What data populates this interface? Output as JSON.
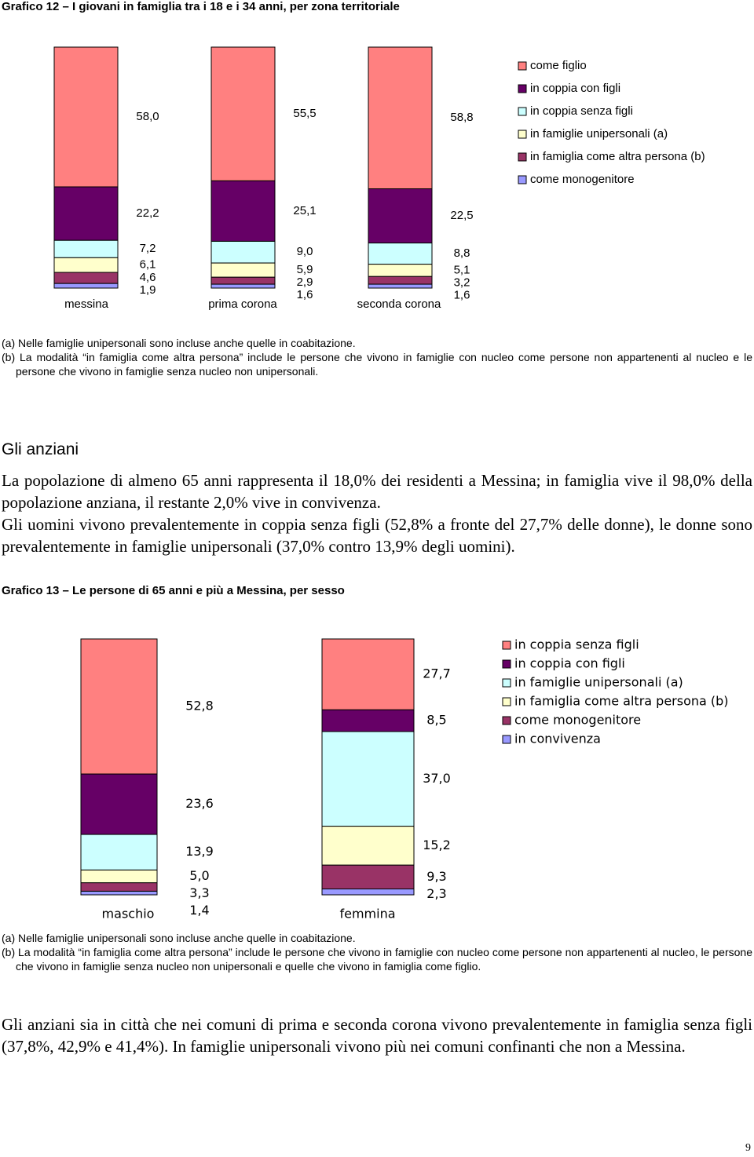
{
  "chart_data": [
    {
      "type": "stacked-bar",
      "title": "Grafico 12 – I giovani in famiglia tra i 18 e i 34 anni, per zona territoriale",
      "categories": [
        "messina",
        "prima corona",
        "seconda corona"
      ],
      "ylim": [
        0,
        100
      ],
      "series": [
        {
          "name": "come figlio",
          "color": "#ff8080",
          "values": [
            58.0,
            55.5,
            58.8
          ],
          "value_labels": [
            "58,0",
            "55,5",
            "58,8"
          ]
        },
        {
          "name": "in coppia con figli",
          "color": "#660066",
          "values": [
            22.2,
            25.1,
            22.5
          ],
          "value_labels": [
            "22,2",
            "25,1",
            "22,5"
          ]
        },
        {
          "name": "in coppia senza figli",
          "color": "#ccffff",
          "values": [
            7.2,
            9.0,
            8.8
          ],
          "value_labels": [
            "7,2",
            "9,0",
            "8,8"
          ]
        },
        {
          "name": "in famiglie unipersonali (a)",
          "color": "#ffffcc",
          "values": [
            6.1,
            5.9,
            5.1
          ],
          "value_labels": [
            "6,1",
            "5,9",
            "5,1"
          ]
        },
        {
          "name": "in famiglia come altra persona (b)",
          "color": "#993366",
          "values": [
            4.6,
            2.9,
            3.2
          ],
          "value_labels": [
            "4,6",
            "2,9",
            "3,2"
          ]
        },
        {
          "name": "come monogenitore",
          "color": "#9999ff",
          "values": [
            1.9,
            1.6,
            1.6
          ],
          "value_labels": [
            "1,9",
            "1,6",
            "1,6"
          ]
        }
      ]
    },
    {
      "type": "stacked-bar",
      "title": "Grafico 13 – Le persone di 65 anni e più a Messina, per sesso",
      "categories": [
        "maschio",
        "femmina"
      ],
      "ylim": [
        0,
        100
      ],
      "series": [
        {
          "name": "in coppia senza figli",
          "color": "#ff8080",
          "values": [
            52.8,
            27.7
          ],
          "value_labels": [
            "52,8",
            "27,7"
          ]
        },
        {
          "name": "in coppia con figli",
          "color": "#660066",
          "values": [
            23.6,
            8.5
          ],
          "value_labels": [
            "23,6",
            "8,5"
          ]
        },
        {
          "name": "in famiglie unipersonali (a)",
          "color": "#ccffff",
          "values": [
            13.9,
            37.0
          ],
          "value_labels": [
            "13,9",
            "37,0"
          ]
        },
        {
          "name": "in famiglia come altra persona (b)",
          "color": "#ffffcc",
          "values": [
            5.0,
            15.2
          ],
          "value_labels": [
            "5,0",
            "15,2"
          ]
        },
        {
          "name": "come monogenitore",
          "color": "#993366",
          "values": [
            3.3,
            9.3
          ],
          "value_labels": [
            "3,3",
            "9,3"
          ]
        },
        {
          "name": "in convivenza",
          "color": "#9999ff",
          "values": [
            1.4,
            2.3
          ],
          "value_labels": [
            "1,4",
            "2,3"
          ]
        }
      ]
    }
  ],
  "notes_12": [
    "(a) Nelle famiglie unipersonali sono incluse anche quelle in coabitazione.",
    "(b) La modalità “in famiglia come altra persona” include le persone che vivono in famiglie con nucleo come persone non appartenenti al nucleo e le persone che vivono in famiglie senza nucleo non unipersonali."
  ],
  "heading": "Gli anziani",
  "paragraphs": [
    "La popolazione di almeno 65 anni rappresenta il 18,0% dei residenti a Messina; in famiglia vive il 98,0% della popolazione anziana, il restante 2,0% vive in convivenza.",
    "Gli uomini vivono prevalentemente in coppia senza figli (52,8% a fronte del 27,7% delle donne), le donne sono prevalentemente in famiglie unipersonali (37,0% contro 13,9% degli uomini)."
  ],
  "notes_13": [
    "(a) Nelle famiglie unipersonali sono incluse anche quelle in coabitazione.",
    "(b) La modalità “in famiglia come altra persona” include le persone che vivono in famiglie con nucleo come persone non appartenenti al nucleo, le persone che vivono in famiglie senza nucleo non unipersonali e quelle che vivono in famiglia come figlio."
  ],
  "closing": "Gli anziani sia in città che nei comuni di prima e seconda corona vivono prevalentemente in famiglia senza figli (37,8%, 42,9% e 41,4%). In famiglie unipersonali vivono più nei comuni confinanti che non a Messina.",
  "page_number": "9"
}
